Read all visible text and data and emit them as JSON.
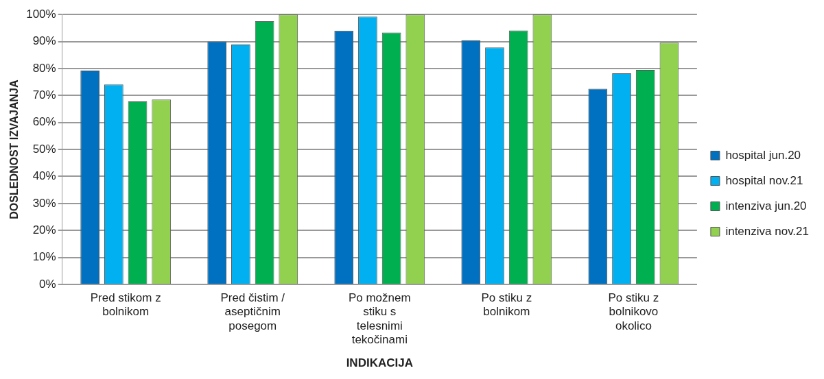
{
  "chart_data": {
    "type": "bar",
    "xlabel": "INDIKACIJA",
    "ylabel": "DOSLEDNOST IZVAJANJA",
    "categories": [
      "Pred stikom z bolnikom",
      "Pred čistim / aseptičnim posegom",
      "Po možnem stiku s telesnimi tekočinami",
      "Po stiku z bolnikom",
      "Po stiku z bolnikovo okolico"
    ],
    "series": [
      {
        "name": "hospital jun.20",
        "color": "#0070c0",
        "values": [
          79.2,
          90,
          94,
          90.4,
          72.5
        ]
      },
      {
        "name": "hospital nov.21",
        "color": "#00b0f0",
        "values": [
          74.1,
          88.9,
          99.2,
          87.8,
          78.2
        ]
      },
      {
        "name": "intenziva jun.20",
        "color": "#00b050",
        "values": [
          67.8,
          97.5,
          93.3,
          94.1,
          79.5
        ]
      },
      {
        "name": "intenziva nov.21",
        "color": "#92d050",
        "values": [
          68.5,
          100,
          100,
          100,
          89.6
        ]
      }
    ],
    "ylim": [
      0,
      100
    ],
    "yticks": [
      {
        "value": 0,
        "label": "0%"
      },
      {
        "value": 10,
        "label": "10%"
      },
      {
        "value": 20,
        "label": "20%"
      },
      {
        "value": 30,
        "label": "30%"
      },
      {
        "value": 40,
        "label": "40%"
      },
      {
        "value": 50,
        "label": "50%"
      },
      {
        "value": 60,
        "label": "60%"
      },
      {
        "value": 70,
        "label": "70%"
      },
      {
        "value": 80,
        "label": "80%"
      },
      {
        "value": 90,
        "label": "90%"
      },
      {
        "value": 100,
        "label": "100%"
      }
    ],
    "grid": "y",
    "legend": "right"
  }
}
